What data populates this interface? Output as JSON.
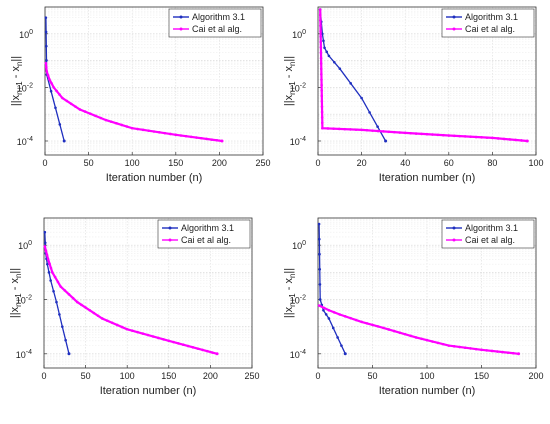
{
  "chart_data": [
    {
      "type": "line",
      "xlim": [
        0,
        250
      ],
      "xticks": [
        0,
        50,
        100,
        150,
        200,
        250
      ],
      "ylim": [
        3e-05,
        10
      ],
      "yscale": "log",
      "yticks": [
        1,
        0.01,
        0.0001
      ],
      "ytick_labels": [
        "10",
        "10",
        "10"
      ],
      "ytick_exps": [
        "0",
        "-2",
        "-4"
      ],
      "xlabel": "Iteration number (n)",
      "ylabel_main": "||x",
      "ylabel_sub1": "n+1",
      "ylabel_mid": " - x",
      "ylabel_sub2": "n",
      "ylabel_end": "||",
      "grid": true,
      "legend": "top-right",
      "series": [
        {
          "name": "Algorithm 3.1",
          "color": "#1f2fbf",
          "marker": "dot",
          "x": [
            1,
            2,
            22
          ],
          "y": [
            4,
            0.03,
            0.0001
          ]
        },
        {
          "name": "Cai et al alg.",
          "color": "#ff00ff",
          "marker": "dot",
          "x": [
            1,
            2,
            5,
            10,
            20,
            40,
            70,
            100,
            150,
            203
          ],
          "y": [
            0.08,
            0.04,
            0.02,
            0.01,
            0.004,
            0.0015,
            0.0006,
            0.0003,
            0.00017,
            0.0001
          ]
        }
      ]
    },
    {
      "type": "line",
      "xlim": [
        0,
        100
      ],
      "xticks": [
        0,
        20,
        40,
        60,
        80,
        100
      ],
      "ylim": [
        3e-05,
        10
      ],
      "yscale": "log",
      "yticks": [
        1,
        0.01,
        0.0001
      ],
      "ytick_labels": [
        "10",
        "10",
        "10"
      ],
      "ytick_exps": [
        "0",
        "-2",
        "-4"
      ],
      "xlabel": "Iteration number (n)",
      "ylabel_main": "||x",
      "ylabel_sub1": "n+1",
      "ylabel_mid": " - x",
      "ylabel_sub2": "n",
      "ylabel_end": "||",
      "grid": true,
      "legend": "top-right",
      "series": [
        {
          "name": "Algorithm 3.1",
          "color": "#1f2fbf",
          "marker": "dot",
          "x": [
            1,
            2,
            3,
            5,
            10,
            20,
            31
          ],
          "y": [
            8,
            1,
            0.3,
            0.15,
            0.05,
            0.004,
            0.0001
          ]
        },
        {
          "name": "Cai et al alg.",
          "color": "#ff00ff",
          "marker": "dot",
          "x": [
            1,
            2,
            20,
            40,
            60,
            80,
            96
          ],
          "y": [
            8,
            0.0003,
            0.00026,
            0.0002,
            0.00016,
            0.00013,
            0.0001
          ]
        }
      ]
    },
    {
      "type": "line",
      "xlim": [
        0,
        250
      ],
      "xticks": [
        0,
        50,
        100,
        150,
        200,
        250
      ],
      "ylim": [
        3e-05,
        10
      ],
      "yscale": "log",
      "yticks": [
        1,
        0.01,
        0.0001
      ],
      "ytick_labels": [
        "10",
        "10",
        "10"
      ],
      "ytick_exps": [
        "0",
        "-2",
        "-4"
      ],
      "xlabel": "Iteration number (n)",
      "ylabel_main": "||x",
      "ylabel_sub1": "n+1",
      "ylabel_mid": " - x",
      "ylabel_sub2": "n",
      "ylabel_end": "||",
      "grid": true,
      "legend": "top-right",
      "series": [
        {
          "name": "Algorithm 3.1",
          "color": "#1f2fbf",
          "marker": "dot",
          "x": [
            1,
            2,
            4,
            8,
            15,
            22,
            30
          ],
          "y": [
            3,
            0.5,
            0.2,
            0.05,
            0.008,
            0.001,
            0.0001
          ]
        },
        {
          "name": "Cai et al alg.",
          "color": "#ff00ff",
          "marker": "dot",
          "x": [
            1,
            5,
            10,
            20,
            40,
            70,
            100,
            150,
            208
          ],
          "y": [
            0.9,
            0.3,
            0.1,
            0.03,
            0.008,
            0.002,
            0.0008,
            0.0003,
            0.0001
          ]
        }
      ]
    },
    {
      "type": "line",
      "xlim": [
        0,
        200
      ],
      "xticks": [
        0,
        50,
        100,
        150,
        200
      ],
      "ylim": [
        3e-05,
        10
      ],
      "yscale": "log",
      "yticks": [
        1,
        0.01,
        0.0001
      ],
      "ytick_labels": [
        "10",
        "10",
        "10"
      ],
      "ytick_exps": [
        "0",
        "-2",
        "-4"
      ],
      "xlabel": "Iteration number (n)",
      "ylabel_main": "||x",
      "ylabel_sub1": "n+1",
      "ylabel_mid": " - x",
      "ylabel_sub2": "n",
      "ylabel_end": "||",
      "grid": true,
      "legend": "top-right",
      "series": [
        {
          "name": "Algorithm 3.1",
          "color": "#1f2fbf",
          "marker": "dot",
          "x": [
            1,
            2,
            5,
            10,
            18,
            25
          ],
          "y": [
            6,
            0.01,
            0.004,
            0.002,
            0.0004,
            0.0001
          ]
        },
        {
          "name": "Cai et al alg.",
          "color": "#ff00ff",
          "marker": "dot",
          "x": [
            1,
            10,
            20,
            40,
            60,
            90,
            120,
            150,
            184
          ],
          "y": [
            0.006,
            0.004,
            0.0028,
            0.0015,
            0.0009,
            0.0004,
            0.0002,
            0.00014,
            0.0001
          ]
        }
      ]
    }
  ]
}
